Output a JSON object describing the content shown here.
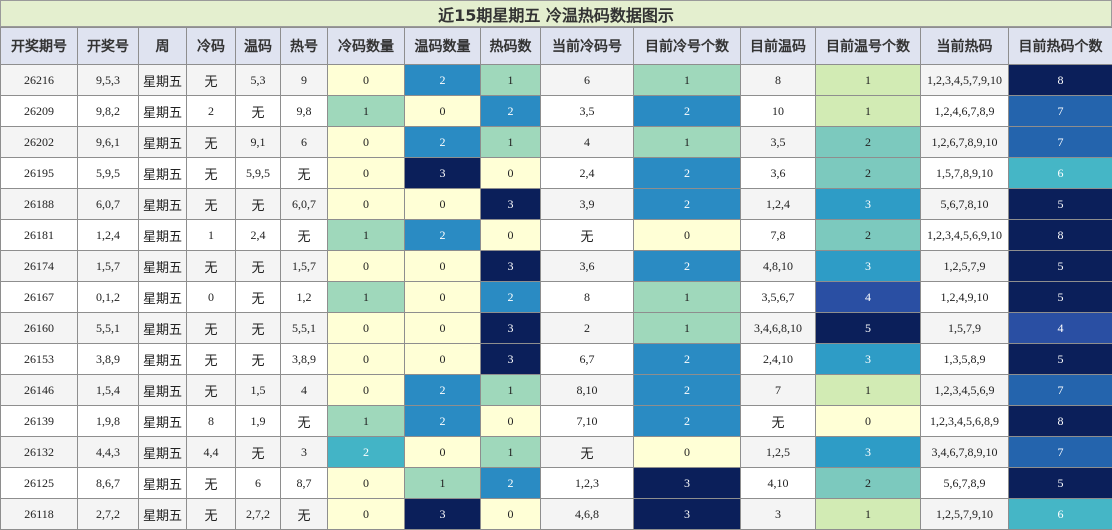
{
  "chart_data": {
    "type": "table",
    "title": "近15期星期五 冷温热码数据图示",
    "columns": [
      "开奖期号",
      "开奖号",
      "周",
      "冷码",
      "温码",
      "热号",
      "冷码数量",
      "温码数量",
      "热码数",
      "当前冷码号",
      "目前冷号个数",
      "目前温码",
      "目前温号个数",
      "当前热码",
      "目前热码个数"
    ],
    "rows": [
      [
        "26216",
        "9,5,3",
        "星期五",
        "无",
        "5,3",
        "9",
        "0",
        "2",
        "1",
        "6",
        "1",
        "8",
        "1",
        "1,2,3,4,5,7,9,10",
        "8"
      ],
      [
        "26209",
        "9,8,2",
        "星期五",
        "2",
        "无",
        "9,8",
        "1",
        "0",
        "2",
        "3,5",
        "2",
        "10",
        "1",
        "1,2,4,6,7,8,9",
        "7"
      ],
      [
        "26202",
        "9,6,1",
        "星期五",
        "无",
        "9,1",
        "6",
        "0",
        "2",
        "1",
        "4",
        "1",
        "3,5",
        "2",
        "1,2,6,7,8,9,10",
        "7"
      ],
      [
        "26195",
        "5,9,5",
        "星期五",
        "无",
        "5,9,5",
        "无",
        "0",
        "3",
        "0",
        "2,4",
        "2",
        "3,6",
        "2",
        "1,5,7,8,9,10",
        "6"
      ],
      [
        "26188",
        "6,0,7",
        "星期五",
        "无",
        "无",
        "6,0,7",
        "0",
        "0",
        "3",
        "3,9",
        "2",
        "1,2,4",
        "3",
        "5,6,7,8,10",
        "5"
      ],
      [
        "26181",
        "1,2,4",
        "星期五",
        "1",
        "2,4",
        "无",
        "1",
        "2",
        "0",
        "无",
        "0",
        "7,8",
        "2",
        "1,2,3,4,5,6,9,10",
        "8"
      ],
      [
        "26174",
        "1,5,7",
        "星期五",
        "无",
        "无",
        "1,5,7",
        "0",
        "0",
        "3",
        "3,6",
        "2",
        "4,8,10",
        "3",
        "1,2,5,7,9",
        "5"
      ],
      [
        "26167",
        "0,1,2",
        "星期五",
        "0",
        "无",
        "1,2",
        "1",
        "0",
        "2",
        "8",
        "1",
        "3,5,6,7",
        "4",
        "1,2,4,9,10",
        "5"
      ],
      [
        "26160",
        "5,5,1",
        "星期五",
        "无",
        "无",
        "5,5,1",
        "0",
        "0",
        "3",
        "2",
        "1",
        "3,4,6,8,10",
        "5",
        "1,5,7,9",
        "4"
      ],
      [
        "26153",
        "3,8,9",
        "星期五",
        "无",
        "无",
        "3,8,9",
        "0",
        "0",
        "3",
        "6,7",
        "2",
        "2,4,10",
        "3",
        "1,3,5,8,9",
        "5"
      ],
      [
        "26146",
        "1,5,4",
        "星期五",
        "无",
        "1,5",
        "4",
        "0",
        "2",
        "1",
        "8,10",
        "2",
        "7",
        "1",
        "1,2,3,4,5,6,9",
        "7"
      ],
      [
        "26139",
        "1,9,8",
        "星期五",
        "8",
        "1,9",
        "无",
        "1",
        "2",
        "0",
        "7,10",
        "2",
        "无",
        "0",
        "1,2,3,4,5,6,8,9",
        "8"
      ],
      [
        "26132",
        "4,4,3",
        "星期五",
        "4,4",
        "无",
        "3",
        "2",
        "0",
        "1",
        "无",
        "0",
        "1,2,5",
        "3",
        "3,4,6,7,8,9,10",
        "7"
      ],
      [
        "26125",
        "8,6,7",
        "星期五",
        "无",
        "6",
        "8,7",
        "0",
        "1",
        "2",
        "1,2,3",
        "3",
        "4,10",
        "2",
        "5,6,7,8,9",
        "5"
      ],
      [
        "26118",
        "2,7,2",
        "星期五",
        "无",
        "2,7,2",
        "无",
        "0",
        "3",
        "0",
        "4,6,8",
        "3",
        "3",
        "1",
        "1,2,5,7,9,10",
        "6"
      ]
    ],
    "heatmap_columns": [
      6,
      7,
      8,
      10,
      12,
      14
    ],
    "heat_scale": {
      "0": "#ffffd6",
      "1": "#9fd8bb",
      "2": "#2a8bc3",
      "3": "#0b1f5a"
    },
    "heat_scale_large": {
      "0": "#ffffd6",
      "1": "#d2ebb4",
      "2": "#7cc9be",
      "3": "#2e9cc6",
      "4": "#2a4fa3",
      "5": "#0b1f5a",
      "6": "#45b6c6",
      "7": "#2464ad",
      "8": "#0b1f5a"
    }
  }
}
